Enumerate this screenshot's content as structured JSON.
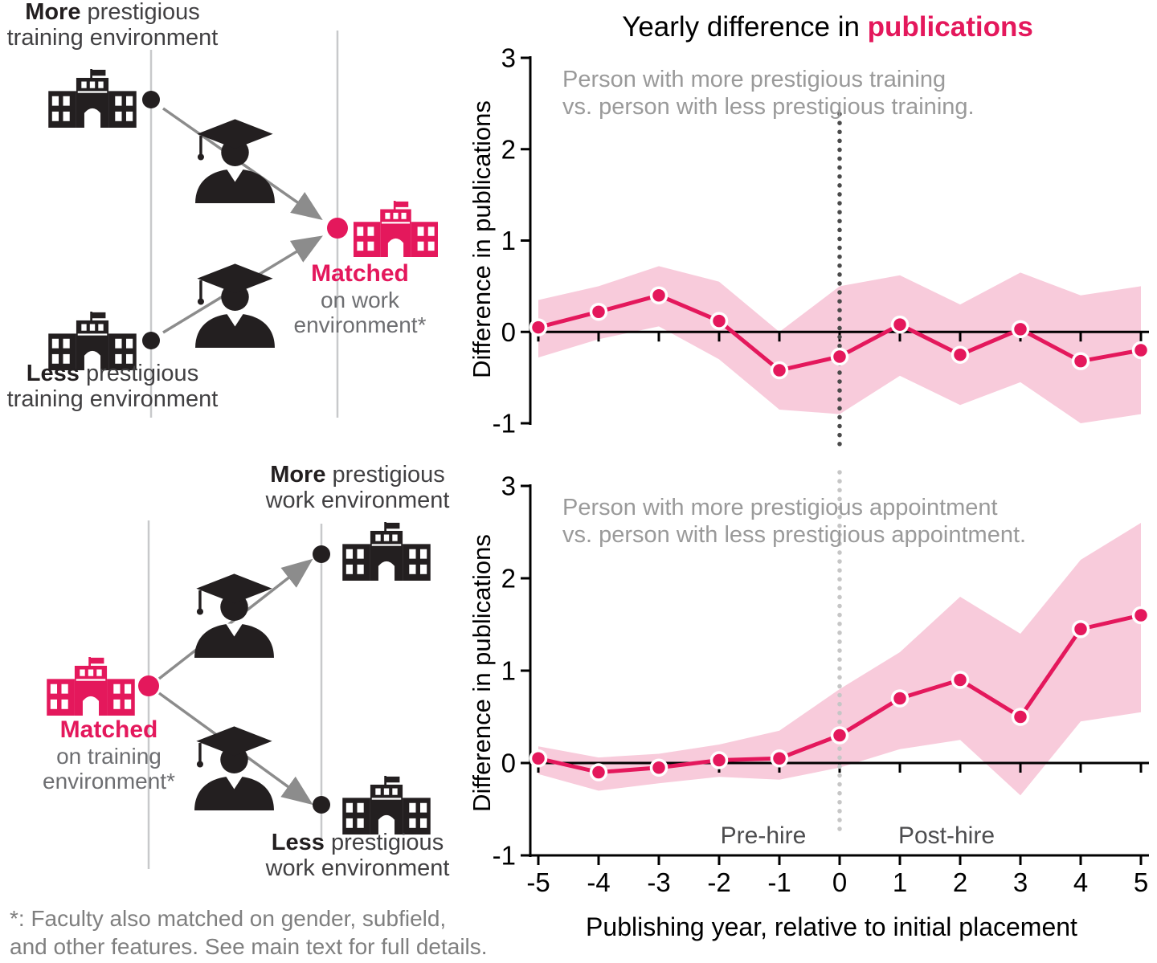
{
  "title": {
    "prefix": "Yearly difference in ",
    "highlight": "publications"
  },
  "colors": {
    "accent": "#e4185c",
    "band": "#f8cbdb",
    "annotation_gray": "#9a9a9a",
    "timeline_gray": "#c8c9cb",
    "arrow_gray": "#8c8c8c",
    "icon_black": "#231f20"
  },
  "diagram_top": {
    "env_more_bold": "More",
    "env_more_rest": " prestigious",
    "env_more_line2": "training environment",
    "env_less_bold": "Less",
    "env_less_rest": " prestigious",
    "env_less_line2": "training environment",
    "matched_label": "Matched",
    "matched_line2": "on work",
    "matched_line3": "environment*"
  },
  "diagram_bottom": {
    "env_more_bold": "More",
    "env_more_rest": " prestigious",
    "env_more_line2": "work environment",
    "env_less_bold": "Less",
    "env_less_rest": " prestigious",
    "env_less_line2": "work environment",
    "matched_label": "Matched",
    "matched_line2": "on training",
    "matched_line3": "environment*"
  },
  "footnote": {
    "line1": "*: Faculty also matched on gender, subfield,",
    "line2": "and other features. See main text for full details."
  },
  "chart_data": [
    {
      "type": "line",
      "name": "training-comparison",
      "annotation": [
        "Person with more prestigious training",
        "vs. person with less prestigious training."
      ],
      "ylabel": "Difference in publications",
      "ylim": [
        -1,
        3
      ],
      "yticks": [
        3,
        2,
        1,
        0,
        -1
      ],
      "xticks": [
        -5,
        -4,
        -3,
        -2,
        -1,
        0,
        1,
        2,
        3,
        4,
        5
      ],
      "x": [
        -5,
        -4,
        -3,
        -2,
        -1,
        0,
        1,
        2,
        3,
        4,
        5
      ],
      "y": [
        0.05,
        0.22,
        0.4,
        0.12,
        -0.42,
        -0.27,
        0.08,
        -0.25,
        0.03,
        -0.32,
        -0.2
      ],
      "band_upper": [
        0.35,
        0.5,
        0.72,
        0.55,
        0.0,
        0.5,
        0.62,
        0.3,
        0.65,
        0.4,
        0.5
      ],
      "band_lower": [
        -0.28,
        -0.08,
        0.06,
        -0.3,
        -0.85,
        -0.9,
        -0.48,
        -0.8,
        -0.55,
        -1.0,
        -0.9
      ],
      "vline_x": 0,
      "vline_color": "#4a4a4a",
      "show_x_labels": false
    },
    {
      "type": "line",
      "name": "appointment-comparison",
      "annotation": [
        "Person with more prestigious appointment",
        "vs. person with less prestigious appointment."
      ],
      "ylabel": "Difference in publications",
      "ylim": [
        -1,
        3
      ],
      "yticks": [
        3,
        2,
        1,
        0,
        -1
      ],
      "xticks": [
        -5,
        -4,
        -3,
        -2,
        -1,
        0,
        1,
        2,
        3,
        4,
        5
      ],
      "x": [
        -5,
        -4,
        -3,
        -2,
        -1,
        0,
        1,
        2,
        3,
        4,
        5
      ],
      "y": [
        0.05,
        -0.1,
        -0.05,
        0.03,
        0.05,
        0.3,
        0.7,
        0.9,
        0.5,
        1.45,
        1.6
      ],
      "band_upper": [
        0.18,
        0.06,
        0.1,
        0.2,
        0.35,
        0.8,
        1.2,
        1.8,
        1.4,
        2.2,
        2.6
      ],
      "band_lower": [
        -0.12,
        -0.3,
        -0.22,
        -0.15,
        -0.18,
        -0.05,
        0.15,
        0.25,
        -0.35,
        0.45,
        0.55
      ],
      "vline_x": 0,
      "vline_color": "#c6c6c6",
      "show_x_labels": true,
      "pre_label": "Pre-hire",
      "post_label": "Post-hire",
      "xlabel": "Publishing year, relative to initial placement"
    }
  ]
}
